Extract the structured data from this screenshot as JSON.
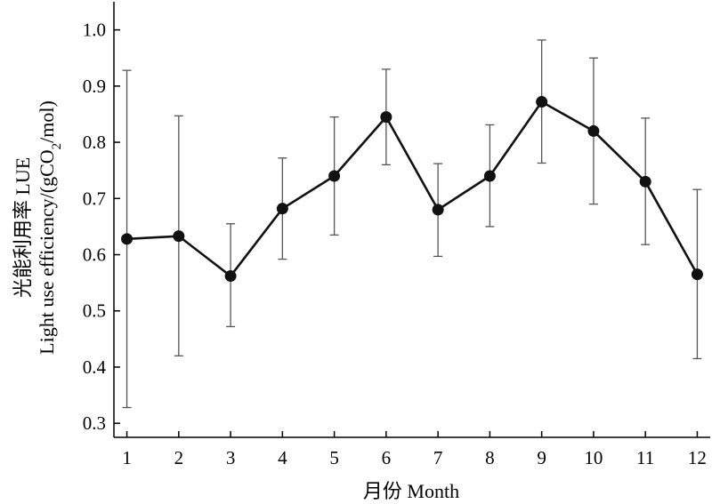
{
  "chart_data": {
    "type": "line",
    "xlabel": "月份 Month",
    "ylabel_line1": "光能利用率 LUE",
    "ylabel_line2_main": "Light use efficiency/(gCO",
    "ylabel_line2_sub": "2",
    "ylabel_line2_end": "/mol)",
    "x": [
      1,
      2,
      3,
      4,
      5,
      6,
      7,
      8,
      9,
      10,
      11,
      12
    ],
    "xticks": [
      "1",
      "2",
      "3",
      "4",
      "5",
      "6",
      "7",
      "8",
      "9",
      "10",
      "11",
      "12"
    ],
    "yticks": [
      "0.3",
      "0.4",
      "0.5",
      "0.6",
      "0.7",
      "0.8",
      "0.9",
      "1.0"
    ],
    "ylim": [
      0.275,
      1.05
    ],
    "xlim": [
      0.75,
      12.25
    ],
    "series": [
      {
        "values": [
          0.628,
          0.633,
          0.562,
          0.682,
          0.74,
          0.845,
          0.68,
          0.74,
          0.872,
          0.82,
          0.73,
          0.565
        ],
        "err_low": [
          0.328,
          0.42,
          0.472,
          0.592,
          0.635,
          0.76,
          0.597,
          0.65,
          0.763,
          0.69,
          0.618,
          0.415
        ],
        "err_high": [
          0.928,
          0.847,
          0.655,
          0.772,
          0.845,
          0.93,
          0.762,
          0.831,
          0.982,
          0.95,
          0.843,
          0.716
        ]
      }
    ],
    "grid": false
  }
}
